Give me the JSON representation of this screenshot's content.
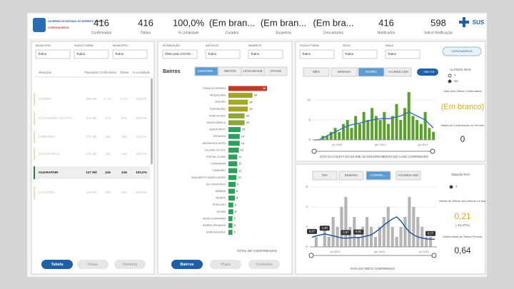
{
  "header": {
    "logo_text": "GOVERNO DO ESTADO DO ESPÍRITO SANTO",
    "logo_sub": "CORONAVÍRUS",
    "sus": "SUS",
    "kpis": [
      {
        "value": "416",
        "label": "Confirmados"
      },
      {
        "value": "416",
        "label": "Óbitos"
      },
      {
        "value": "100,0%",
        "label": "% Letalidade"
      },
      {
        "value": "(Em bran...",
        "label": "Curados"
      },
      {
        "value": "(Em bran...",
        "label": "Suspeitos"
      },
      {
        "value": "(Em bra...",
        "label": "Descartados"
      },
      {
        "value": "416",
        "label": "Notificados"
      },
      {
        "value": "598",
        "label": "Índice Notificação"
      }
    ]
  },
  "left": {
    "filters": [
      {
        "label": "MUNICÍPIO",
        "value": "Todos"
      },
      {
        "label": "FAIXA ETÁRIA",
        "value": "Todos"
      },
      {
        "label": "MUNICÍPIO",
        "value": "Todos"
      }
    ],
    "table": {
      "columns": [
        "Município",
        "População",
        "Confirmados",
        "Óbitos",
        "% Letalidade"
      ],
      "rows": [
        [
          "VITÓRIA",
          "365 Mil",
          "1.717",
          "1.717",
          "100,0%"
        ],
        [
          "CACHOEIRO DE ITAP...",
          "211 Mil",
          "876",
          "876",
          "100,0%"
        ],
        [
          "LINHARES",
          "177 Mil",
          "398",
          "398",
          "100,0%"
        ],
        [
          "SÃO MATEUS",
          "132 Mil",
          "215",
          "215",
          "100,0%"
        ],
        [
          "GUARAPARI",
          "127 Mil",
          "416",
          "416",
          "100,0%"
        ],
        [
          "COLATINA",
          "123 Mil",
          "326",
          "326",
          "100,0%"
        ]
      ],
      "selected_row": 4
    },
    "buttons": [
      "Tabela",
      "Mapa",
      "Ranking"
    ],
    "selected_button": 0
  },
  "middle": {
    "filters": [
      {
        "label": "ATRIBUIÇÃO",
        "value": "Óbito pelo COVID..."
      },
      {
        "label": "ANTIGOS",
        "value": "Todos"
      },
      {
        "label": "BAIRROS",
        "value": "Todos"
      }
    ],
    "title": "Bairros",
    "tabs": [
      "CONFIRM...",
      "ÓBITOS",
      "LETALIDADE",
      "ATIVOS"
    ],
    "selected_tab": 0,
    "chart_data": {
      "type": "bar",
      "orientation": "horizontal",
      "x_label": "TOTAL DE CONFIRMADOS",
      "xlim": [
        0,
        48
      ],
      "categories": [
        "PRAIA DO MORRO",
        "MUQUIÇABA",
        "CENTRO",
        "ITAPEBUSSU",
        "KUBITSCHEK",
        "SANTA MÔNICA",
        "AEROPORTO",
        "IPIRANGA",
        "JARDIM BOA VISTA",
        "VILLAGE DO SOL",
        "PORTAL CLUBE",
        "ITAPEMIRIM",
        "LAMEIRÃO",
        "ADALBERTO SIMÃO NADER",
        "SOL NASCENTE",
        "JABARAÍ",
        "MEAÍPE",
        "PEROCÃO",
        "SETIBA",
        "NOVA GUARAPARI",
        "BAIRRO IPIRANGA",
        "ENSEADA AZUL"
      ],
      "values": [
        48,
        30,
        24,
        24,
        20,
        20,
        15,
        14,
        14,
        13,
        11,
        11,
        11,
        10,
        9,
        8,
        8,
        6,
        6,
        5,
        5,
        5
      ],
      "colors": [
        "#c0392b",
        "#a5a52c",
        "#a5a52c",
        "#a5a52c",
        "#8fa63a",
        "#8fa63a",
        "#2e9e5b",
        "#2e9e5b",
        "#2e9e5b",
        "#2e9e5b",
        "#2e9e5b",
        "#2e9e5b",
        "#2e9e5b",
        "#2e9e5b",
        "#2e9e5b",
        "#2e9e5b",
        "#2e9e5b",
        "#2e9e5b",
        "#2e9e5b",
        "#2e9e5b",
        "#2e9e5b",
        "#2e9e5b"
      ]
    },
    "buttons": [
      "Bairros",
      "Mapa",
      "Unidades"
    ],
    "selected_button": 0
  },
  "right_top": {
    "filters": [
      {
        "label": "FAIXA ETÁRIA",
        "value": "Todos"
      },
      {
        "label": "SEXO",
        "value": "Todos"
      },
      {
        "label": "RAÇA",
        "value": "Todos"
      }
    ],
    "button": "CORONAVÍRUS",
    "tabs": [
      "MÊS",
      "SEMANA",
      "DIÁRIO",
      "ACUMULADO"
    ],
    "selected_tab": 2,
    "toggle": "ÓBITOS",
    "chart_data": {
      "type": "bar-line",
      "x_label": "DATA DA COLETA DO EXAME OU ENCERRAMENTO DO CASO CONFIRMADO",
      "ylim": [
        0,
        14
      ],
      "yticks": [
        0,
        5,
        10
      ],
      "xtick_labels": [
        "jul 2020",
        "jan 2021",
        "jul 2021"
      ],
      "series": [
        {
          "name": "Confirmados",
          "color": "#5aa02c",
          "kind": "bar",
          "values": [
            0,
            0,
            1,
            1,
            2,
            3,
            2,
            4,
            5,
            3,
            6,
            4,
            7,
            5,
            8,
            6,
            5,
            7,
            4,
            6,
            9,
            5,
            8,
            12,
            6,
            5,
            4,
            7,
            3,
            2
          ]
        },
        {
          "name": "Média móvel",
          "color": "#2a72c8",
          "kind": "line",
          "values": [
            0,
            0,
            0.5,
            1,
            1.5,
            2,
            2.5,
            3,
            3.5,
            3.8,
            4,
            4.2,
            4.5,
            4.8,
            5,
            5.2,
            5.3,
            5.4,
            5.3,
            5.5,
            5.8,
            6,
            6.5,
            7,
            6.5,
            6,
            5.5,
            5,
            4,
            3
          ]
        }
      ]
    },
    "side": {
      "title": "ÚLTIMOS DIAS",
      "options": [
        "7",
        "14"
      ],
      "caption": "Dias sem Óbitos Confirmados",
      "value": "(Em branco)",
      "caption2": "Média de Confirmados no Período",
      "value2": "0"
    }
  },
  "right_bottom": {
    "tabs": [
      "DIA",
      "SEMANA",
      "CORREL...",
      "ACUMULADO"
    ],
    "selected_tab": 2,
    "chart_data": {
      "type": "bar-line",
      "x_label": "DATA DO ÓBITO CONFIRMADO",
      "ylim": [
        0,
        6
      ],
      "yticks": [
        0,
        2,
        4,
        6
      ],
      "xtick_labels": [
        "jul 2020",
        "jan 2021",
        "jul 2021"
      ],
      "series": [
        {
          "name": "Óbitos",
          "color": "#b5b5b5",
          "kind": "bar",
          "values": [
            0,
            1,
            0,
            2,
            1,
            3,
            2,
            4,
            5,
            2,
            3,
            1,
            2,
            3,
            2,
            1,
            2,
            3,
            4,
            2,
            1,
            2,
            3,
            5,
            4,
            3,
            2,
            1,
            1,
            0
          ]
        },
        {
          "name": "Média móvel",
          "color": "#1f4e9c",
          "kind": "line",
          "values": [
            0.97,
            1.1,
            1.2,
            1.3,
            1.2,
            1.1,
            1.0,
            0.9,
            0.87,
            0.9,
            0.95,
            0.92,
            1.0,
            1.1,
            1.2,
            1.5,
            1.8,
            2.2,
            2.5,
            2.8,
            3.0,
            2.6,
            2.0,
            1.5,
            1.2,
            1.0,
            0.9,
            0.8,
            0.77,
            0.77
          ],
          "value_labels": [
            "0,97",
            null,
            null,
            "1,30",
            null,
            null,
            null,
            null,
            "0,87",
            null,
            null,
            "0,92",
            null,
            null,
            null,
            null,
            null,
            null,
            null,
            null,
            null,
            null,
            null,
            null,
            null,
            null,
            null,
            null,
            "0,77",
            null
          ]
        }
      ]
    },
    "side": {
      "title": "Situação NAS",
      "option": "7",
      "caption": "Média de Óbitos nos Últimos 14 dias",
      "value": "0,21",
      "change": "(-44,47%)",
      "caption2": "Média diária de Óbitos Período",
      "value2": "0,64"
    }
  }
}
